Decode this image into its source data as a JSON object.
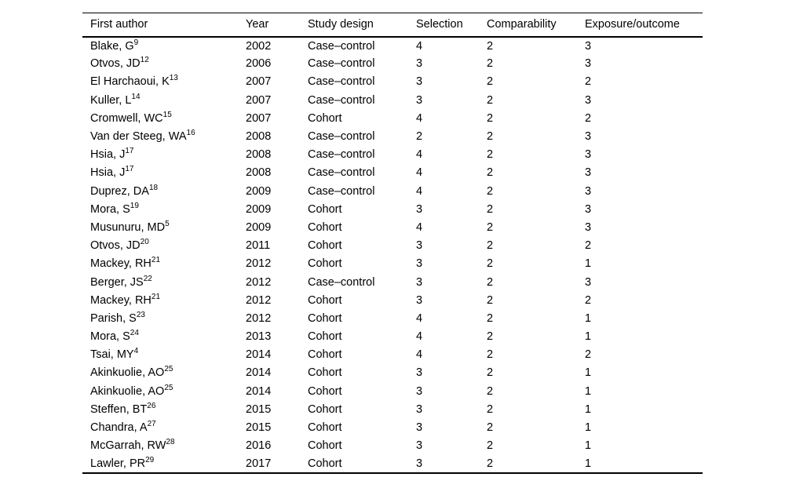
{
  "table": {
    "columns": [
      {
        "key": "author",
        "label": "First author"
      },
      {
        "key": "year",
        "label": "Year"
      },
      {
        "key": "design",
        "label": "Study design"
      },
      {
        "key": "selection",
        "label": "Selection"
      },
      {
        "key": "comparability",
        "label": "Comparability"
      },
      {
        "key": "exposure",
        "label": "Exposure/outcome"
      }
    ],
    "rows": [
      {
        "author": "Blake, G",
        "ref": "9",
        "year": "2002",
        "design": "Case–control",
        "selection": "4",
        "comparability": "2",
        "exposure": "3"
      },
      {
        "author": "Otvos, JD",
        "ref": "12",
        "year": "2006",
        "design": "Case–control",
        "selection": "3",
        "comparability": "2",
        "exposure": "3"
      },
      {
        "author": "El Harchaoui, K",
        "ref": "13",
        "year": "2007",
        "design": "Case–control",
        "selection": "3",
        "comparability": "2",
        "exposure": "2"
      },
      {
        "author": "Kuller, L",
        "ref": "14",
        "year": "2007",
        "design": "Case–control",
        "selection": "3",
        "comparability": "2",
        "exposure": "3"
      },
      {
        "author": "Cromwell, WC",
        "ref": "15",
        "year": "2007",
        "design": "Cohort",
        "selection": "4",
        "comparability": "2",
        "exposure": "2"
      },
      {
        "author": "Van der Steeg, WA",
        "ref": "16",
        "year": "2008",
        "design": "Case–control",
        "selection": "2",
        "comparability": "2",
        "exposure": "3"
      },
      {
        "author": "Hsia, J",
        "ref": "17",
        "year": "2008",
        "design": "Case–control",
        "selection": "4",
        "comparability": "2",
        "exposure": "3"
      },
      {
        "author": "Hsia, J",
        "ref": "17",
        "year": "2008",
        "design": "Case–control",
        "selection": "4",
        "comparability": "2",
        "exposure": "3"
      },
      {
        "author": "Duprez, DA",
        "ref": "18",
        "year": "2009",
        "design": "Case–control",
        "selection": "4",
        "comparability": "2",
        "exposure": "3"
      },
      {
        "author": "Mora, S",
        "ref": "19",
        "year": "2009",
        "design": "Cohort",
        "selection": "3",
        "comparability": "2",
        "exposure": "3"
      },
      {
        "author": "Musunuru, MD",
        "ref": "5",
        "year": "2009",
        "design": "Cohort",
        "selection": "4",
        "comparability": "2",
        "exposure": "3"
      },
      {
        "author": "Otvos, JD",
        "ref": "20",
        "year": "2011",
        "design": "Cohort",
        "selection": "3",
        "comparability": "2",
        "exposure": "2"
      },
      {
        "author": "Mackey, RH",
        "ref": "21",
        "year": "2012",
        "design": "Cohort",
        "selection": "3",
        "comparability": "2",
        "exposure": "1"
      },
      {
        "author": "Berger, JS",
        "ref": "22",
        "year": "2012",
        "design": "Case–control",
        "selection": "3",
        "comparability": "2",
        "exposure": "3"
      },
      {
        "author": "Mackey, RH",
        "ref": "21",
        "year": "2012",
        "design": "Cohort",
        "selection": "3",
        "comparability": "2",
        "exposure": "2"
      },
      {
        "author": "Parish, S",
        "ref": "23",
        "year": "2012",
        "design": "Cohort",
        "selection": "4",
        "comparability": "2",
        "exposure": "1"
      },
      {
        "author": "Mora, S",
        "ref": "24",
        "year": "2013",
        "design": "Cohort",
        "selection": "4",
        "comparability": "2",
        "exposure": "1"
      },
      {
        "author": "Tsai, MY",
        "ref": "4",
        "year": "2014",
        "design": "Cohort",
        "selection": "4",
        "comparability": "2",
        "exposure": "2"
      },
      {
        "author": "Akinkuolie, AO",
        "ref": "25",
        "year": "2014",
        "design": "Cohort",
        "selection": "3",
        "comparability": "2",
        "exposure": "1"
      },
      {
        "author": "Akinkuolie, AO",
        "ref": "25",
        "year": "2014",
        "design": "Cohort",
        "selection": "3",
        "comparability": "2",
        "exposure": "1"
      },
      {
        "author": "Steffen, BT",
        "ref": "26",
        "year": "2015",
        "design": "Cohort",
        "selection": "3",
        "comparability": "2",
        "exposure": "1"
      },
      {
        "author": "Chandra, A",
        "ref": "27",
        "year": "2015",
        "design": "Cohort",
        "selection": "3",
        "comparability": "2",
        "exposure": "1"
      },
      {
        "author": "McGarrah, RW",
        "ref": "28",
        "year": "2016",
        "design": "Cohort",
        "selection": "3",
        "comparability": "2",
        "exposure": "1"
      },
      {
        "author": "Lawler, PR",
        "ref": "29",
        "year": "2017",
        "design": "Cohort",
        "selection": "3",
        "comparability": "2",
        "exposure": "1"
      }
    ]
  }
}
